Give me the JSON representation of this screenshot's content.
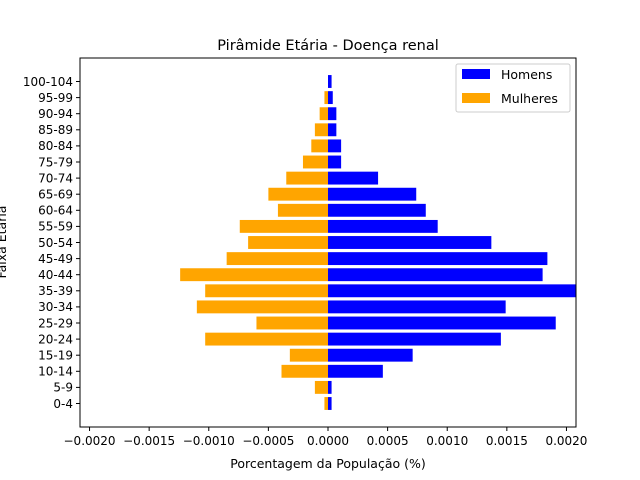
{
  "chart_data": {
    "type": "bar",
    "orientation": "horizontal",
    "title": "Pirâmide Etária - Doença renal",
    "xlabel": "Porcentagem da População (%)",
    "ylabel": "Faixa Etária",
    "xlim": [
      -0.00208,
      0.00208
    ],
    "x_ticks": [
      -0.002,
      -0.0015,
      -0.001,
      -0.0005,
      0.0,
      0.0005,
      0.001,
      0.0015,
      0.002
    ],
    "x_tick_labels": [
      "−0.0020",
      "−0.0015",
      "−0.0010",
      "−0.0005",
      "0.0000",
      "0.0005",
      "0.0010",
      "0.0015",
      "0.0020"
    ],
    "categories": [
      "0-4",
      "5-9",
      "10-14",
      "15-19",
      "20-24",
      "25-29",
      "30-34",
      "35-39",
      "40-44",
      "45-49",
      "50-54",
      "55-59",
      "60-64",
      "65-69",
      "70-74",
      "75-79",
      "80-84",
      "85-89",
      "90-94",
      "95-99",
      "100-104"
    ],
    "series": [
      {
        "name": "Homens",
        "color": "#0000ff",
        "values": [
          3e-05,
          3e-05,
          0.00046,
          0.00071,
          0.00145,
          0.00191,
          0.00149,
          0.0021,
          0.0018,
          0.00184,
          0.00137,
          0.00092,
          0.00082,
          0.00074,
          0.00042,
          0.00011,
          0.00011,
          7e-05,
          7e-05,
          4e-05,
          3e-05
        ]
      },
      {
        "name": "Mulheres",
        "color": "#ffa500",
        "values": [
          -3e-05,
          -0.00011,
          -0.00039,
          -0.00032,
          -0.00103,
          -0.0006,
          -0.0011,
          -0.00103,
          -0.00124,
          -0.00085,
          -0.00067,
          -0.00074,
          -0.00042,
          -0.0005,
          -0.00035,
          -0.00021,
          -0.00014,
          -0.00011,
          -7e-05,
          -3e-05,
          0
        ]
      }
    ],
    "legend_position": "top-right",
    "grid": false
  }
}
